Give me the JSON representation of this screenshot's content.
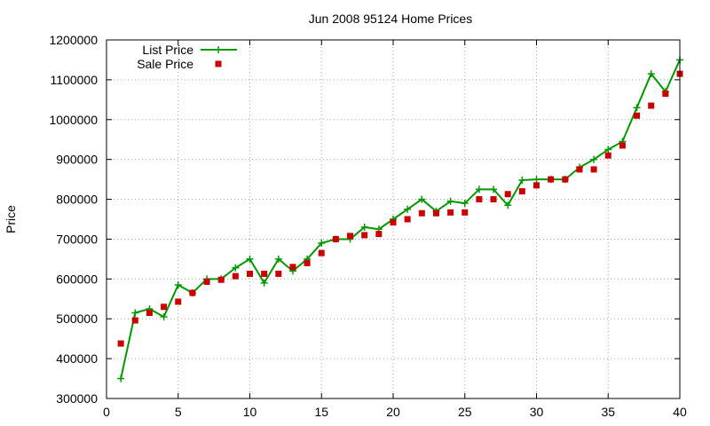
{
  "chart_data": {
    "type": "line",
    "title": "Jun 2008 95124 Home Prices",
    "xlabel": "",
    "ylabel": "Price",
    "xlim": [
      0,
      40
    ],
    "ylim": [
      300000,
      1200000
    ],
    "x_ticks": [
      0,
      5,
      10,
      15,
      20,
      25,
      30,
      35,
      40
    ],
    "y_ticks": [
      300000,
      400000,
      500000,
      600000,
      700000,
      800000,
      900000,
      1000000,
      1100000,
      1200000
    ],
    "grid": true,
    "legend_position": "top-left",
    "x": [
      1,
      2,
      3,
      4,
      5,
      6,
      7,
      8,
      9,
      10,
      11,
      12,
      13,
      14,
      15,
      16,
      17,
      18,
      19,
      20,
      21,
      22,
      23,
      24,
      25,
      26,
      27,
      28,
      29,
      30,
      31,
      32,
      33,
      34,
      35,
      36,
      37,
      38,
      39,
      40
    ],
    "series": [
      {
        "name": "List Price",
        "style": "line-plus",
        "color": "#009900",
        "values": [
          350000,
          515000,
          525000,
          505000,
          585000,
          565000,
          600000,
          600000,
          628000,
          650000,
          590000,
          650000,
          620000,
          650000,
          690000,
          700000,
          700000,
          730000,
          725000,
          750000,
          775000,
          800000,
          770000,
          795000,
          790000,
          825000,
          825000,
          785000,
          848000,
          850000,
          850000,
          850000,
          880000,
          900000,
          925000,
          945000,
          1030000,
          1115000,
          1070000,
          1150000
        ]
      },
      {
        "name": "Sale Price",
        "style": "square",
        "color": "#cc0000",
        "values": [
          438000,
          496000,
          515000,
          530000,
          543000,
          565000,
          593000,
          598000,
          607000,
          613000,
          613000,
          613000,
          630000,
          640000,
          665000,
          700000,
          708000,
          710000,
          713000,
          742000,
          750000,
          765000,
          765000,
          767000,
          767000,
          800000,
          800000,
          813000,
          820000,
          835000,
          850000,
          850000,
          875000,
          875000,
          910000,
          935000,
          1010000,
          1035000,
          1065000,
          1115000
        ]
      }
    ]
  }
}
